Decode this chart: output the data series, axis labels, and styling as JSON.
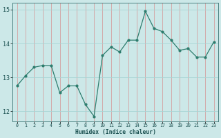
{
  "x": [
    0,
    1,
    2,
    3,
    4,
    5,
    6,
    7,
    8,
    9,
    10,
    11,
    12,
    13,
    14,
    15,
    16,
    17,
    18,
    19,
    20,
    21,
    22,
    23
  ],
  "y": [
    12.75,
    13.05,
    13.3,
    13.35,
    13.35,
    12.55,
    12.75,
    12.75,
    12.2,
    11.85,
    13.65,
    13.9,
    13.75,
    14.1,
    14.1,
    14.95,
    14.45,
    14.35,
    14.1,
    13.8,
    13.85,
    13.6,
    13.6,
    14.05
  ],
  "xlabel": "Humidex (Indice chaleur)",
  "xlim": [
    -0.5,
    23.5
  ],
  "ylim": [
    11.7,
    15.2
  ],
  "yticks": [
    12,
    13,
    14,
    15
  ],
  "xticks": [
    0,
    1,
    2,
    3,
    4,
    5,
    6,
    7,
    8,
    9,
    10,
    11,
    12,
    13,
    14,
    15,
    16,
    17,
    18,
    19,
    20,
    21,
    22,
    23
  ],
  "line_color": "#2e7d6e",
  "bg_color": "#cce8e8",
  "grid_x_color": "#d4a0a0",
  "grid_y_color": "#a8d4d4",
  "tick_color": "#1a5050",
  "xlabel_color": "#1a5050"
}
